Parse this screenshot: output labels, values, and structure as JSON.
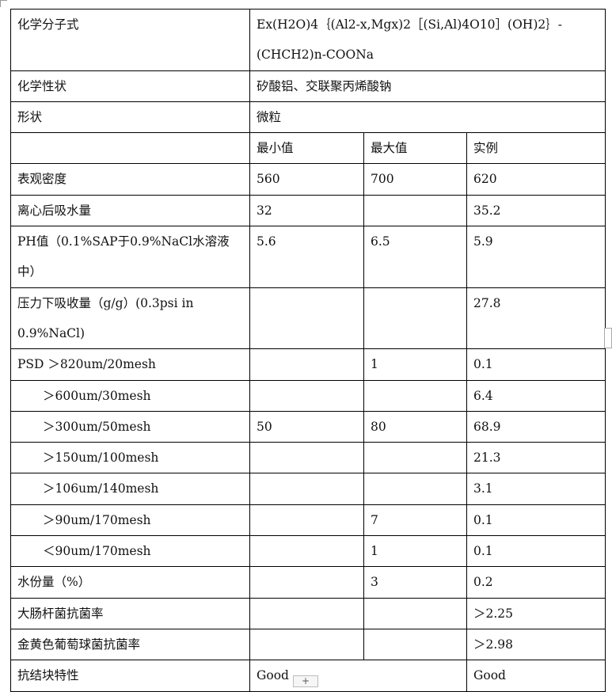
{
  "rows": [
    {
      "label": "化学分子式",
      "value": "Ex(H2O)4｛(Al2-x,Mgx)2［(Si,Al)4O10］(OH)2｝-(CHCH2)n-COONa"
    },
    {
      "label": "化学性状",
      "value": "矽酸铝、交联聚丙烯酸钠"
    },
    {
      "label": "形状",
      "value": "微粒"
    },
    {
      "label": "",
      "min": "最小值",
      "max": "最大值",
      "example": "实例"
    },
    {
      "label": "表观密度",
      "min": "560",
      "max": "700",
      "example": "620"
    },
    {
      "label": "离心后吸水量",
      "min": "32",
      "max": "",
      "example": "35.2"
    },
    {
      "label": "PH值（0.1%SAP于0.9%NaCl水溶液中）",
      "min": "5.6",
      "max": "6.5",
      "example": "5.9"
    },
    {
      "label": "压力下吸收量（g/g）(0.3psi in 0.9%NaCl)",
      "min": "",
      "max": "",
      "example": "27.8"
    },
    {
      "label": "PSD ＞820um/20mesh",
      "min": "",
      "max": "1",
      "example": "0.1"
    },
    {
      "label": "＞600um/30mesh",
      "min": "",
      "max": "",
      "example": "6.4"
    },
    {
      "label": "＞300um/50mesh",
      "min": "50",
      "max": "80",
      "example": "68.9"
    },
    {
      "label": "＞150um/100mesh",
      "min": "",
      "max": "",
      "example": "21.3"
    },
    {
      "label": "＞106um/140mesh",
      "min": "",
      "max": "",
      "example": "3.1"
    },
    {
      "label": "＞90um/170mesh",
      "min": "",
      "max": "7",
      "example": "0.1"
    },
    {
      "label": "＜90um/170mesh",
      "min": "",
      "max": "1",
      "example": "0.1"
    },
    {
      "label": "水份量（%）",
      "min": "",
      "max": "3",
      "example": "0.2"
    },
    {
      "label": "大肠杆菌抗菌率",
      "min": "",
      "max": "",
      "example": "＞2.25"
    },
    {
      "label": "金黄色葡萄球菌抗菌率",
      "min": "",
      "max": "",
      "example": "＞2.98"
    },
    {
      "label": "抗结块特性",
      "min": "Good",
      "example": "Good"
    }
  ],
  "controls": {
    "add_row": "+"
  }
}
